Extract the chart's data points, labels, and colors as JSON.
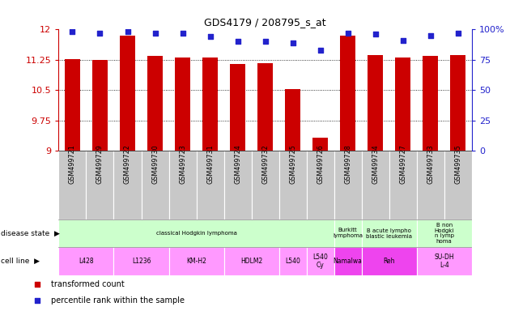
{
  "title": "GDS4179 / 208795_s_at",
  "samples": [
    "GSM499721",
    "GSM499729",
    "GSM499722",
    "GSM499730",
    "GSM499723",
    "GSM499731",
    "GSM499724",
    "GSM499732",
    "GSM499725",
    "GSM499726",
    "GSM499728",
    "GSM499734",
    "GSM499727",
    "GSM499733",
    "GSM499735"
  ],
  "bar_values": [
    11.27,
    11.25,
    11.85,
    11.35,
    11.3,
    11.31,
    11.15,
    11.16,
    10.52,
    9.32,
    11.85,
    11.37,
    11.3,
    11.35,
    11.37
  ],
  "dot_values": [
    98,
    97,
    98,
    97,
    97,
    94,
    90,
    90,
    89,
    83,
    97,
    96,
    91,
    95,
    97
  ],
  "ylim_left": [
    9.0,
    12.0
  ],
  "yticks_left": [
    9.0,
    9.75,
    10.5,
    11.25,
    12.0
  ],
  "yticks_right": [
    0,
    25,
    50,
    75,
    100
  ],
  "bar_color": "#cc0000",
  "dot_color": "#2222cc",
  "background_color": "#ffffff",
  "xticklabel_bg": "#c8c8c8",
  "disease_state_groups": [
    {
      "label": "classical Hodgkin lymphoma",
      "start": 0,
      "end": 9,
      "color": "#ccffcc"
    },
    {
      "label": "Burkitt\nlymphoma",
      "start": 10,
      "end": 10,
      "color": "#ccffcc"
    },
    {
      "label": "B acute lympho\nblastic leukemia",
      "start": 11,
      "end": 12,
      "color": "#ccffcc"
    },
    {
      "label": "B non\nHodgki\nn lymp\nhoma",
      "start": 13,
      "end": 14,
      "color": "#ccffcc"
    }
  ],
  "cell_line_groups": [
    {
      "label": "L428",
      "start": 0,
      "end": 1,
      "color": "#ff99ff"
    },
    {
      "label": "L1236",
      "start": 2,
      "end": 3,
      "color": "#ff99ff"
    },
    {
      "label": "KM-H2",
      "start": 4,
      "end": 5,
      "color": "#ff99ff"
    },
    {
      "label": "HDLM2",
      "start": 6,
      "end": 7,
      "color": "#ff99ff"
    },
    {
      "label": "L540",
      "start": 8,
      "end": 8,
      "color": "#ff99ff"
    },
    {
      "label": "L540\nCy",
      "start": 9,
      "end": 9,
      "color": "#ff99ff"
    },
    {
      "label": "Namalwa",
      "start": 10,
      "end": 10,
      "color": "#ee44ee"
    },
    {
      "label": "Reh",
      "start": 11,
      "end": 12,
      "color": "#ee44ee"
    },
    {
      "label": "SU-DH\nL-4",
      "start": 13,
      "end": 14,
      "color": "#ff99ff"
    }
  ],
  "fig_width": 6.3,
  "fig_height": 3.84,
  "dpi": 100
}
